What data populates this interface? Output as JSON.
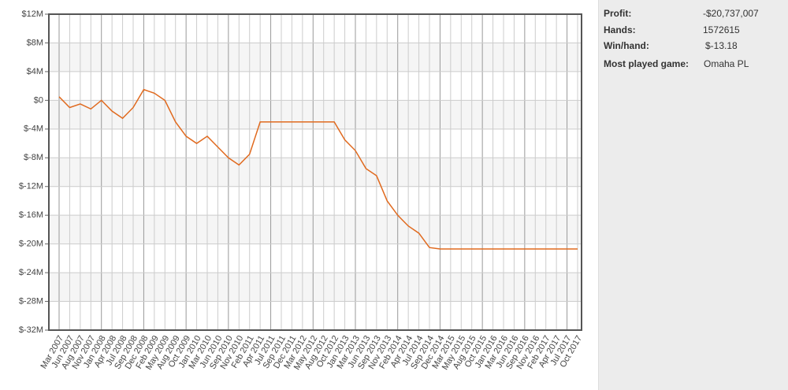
{
  "chart_data": {
    "type": "line",
    "categories": [
      "Mar 2007",
      "Jun 2007",
      "Aug 2007",
      "Nov 2007",
      "Jan 2008",
      "Apr 2008",
      "Jul 2008",
      "Sep 2008",
      "Dec 2008",
      "Feb 2009",
      "May 2009",
      "Aug 2009",
      "Oct 2009",
      "Jan 2010",
      "Mar 2010",
      "Jun 2010",
      "Sep 2010",
      "Nov 2010",
      "Feb 2011",
      "Apr 2011",
      "Jul 2011",
      "Sep 2011",
      "Dec 2011",
      "Mar 2012",
      "May 2012",
      "Aug 2012",
      "Oct 2012",
      "Jan 2013",
      "Mar 2013",
      "Jun 2013",
      "Sep 2013",
      "Nov 2013",
      "Feb 2014",
      "Apr 2014",
      "Jul 2014",
      "Sep 2014",
      "Dec 2014",
      "Mar 2015",
      "May 2015",
      "Aug 2015",
      "Oct 2015",
      "Jan 2016",
      "Mar 2016",
      "Jun 2016",
      "Sep 2016",
      "Nov 2016",
      "Feb 2017",
      "Apr 2017",
      "Jul 2017",
      "Oct 2017"
    ],
    "series": [
      {
        "color": "#e06a1f",
        "values": [
          0.5,
          -1,
          -0.5,
          -1.2,
          0,
          -1.5,
          -2.5,
          -1,
          1.5,
          1,
          0,
          -3,
          -5,
          -6,
          -5,
          -6.5,
          -8,
          -9,
          -7.5,
          -3,
          -3,
          -3,
          -3,
          -3,
          -3,
          -3,
          -3,
          -5.5,
          -7,
          -9.5,
          -10.5,
          -14,
          -16,
          -17.5,
          -18.5,
          -20.5,
          -20.7,
          -20.7,
          -20.7,
          -20.7,
          -20.7,
          -20.7,
          -20.7,
          -20.7,
          -20.7,
          -20.7,
          -20.7,
          -20.7,
          -20.7,
          -20.7
        ]
      }
    ],
    "ylim": [
      -32,
      12
    ],
    "yticks": [
      {
        "value": 12,
        "label": "$12M"
      },
      {
        "value": 8,
        "label": "$8M"
      },
      {
        "value": 4,
        "label": "$4M"
      },
      {
        "value": 0,
        "label": "$0"
      },
      {
        "value": -4,
        "label": "$-4M"
      },
      {
        "value": -8,
        "label": "$-8M"
      },
      {
        "value": -12,
        "label": "$-12M"
      },
      {
        "value": -16,
        "label": "$-16M"
      },
      {
        "value": -20,
        "label": "$-20M"
      },
      {
        "value": -24,
        "label": "$-24M"
      },
      {
        "value": -28,
        "label": "$-28M"
      },
      {
        "value": -32,
        "label": "$-32M"
      }
    ],
    "grid": true
  },
  "stats": {
    "rows": [
      [
        "Profit:",
        "-$20,737,007"
      ],
      [
        "Hands:",
        "1572615"
      ],
      [
        "Win/hand:",
        "$-13.18"
      ],
      [
        "Most played game:",
        "Omaha PL"
      ]
    ]
  }
}
